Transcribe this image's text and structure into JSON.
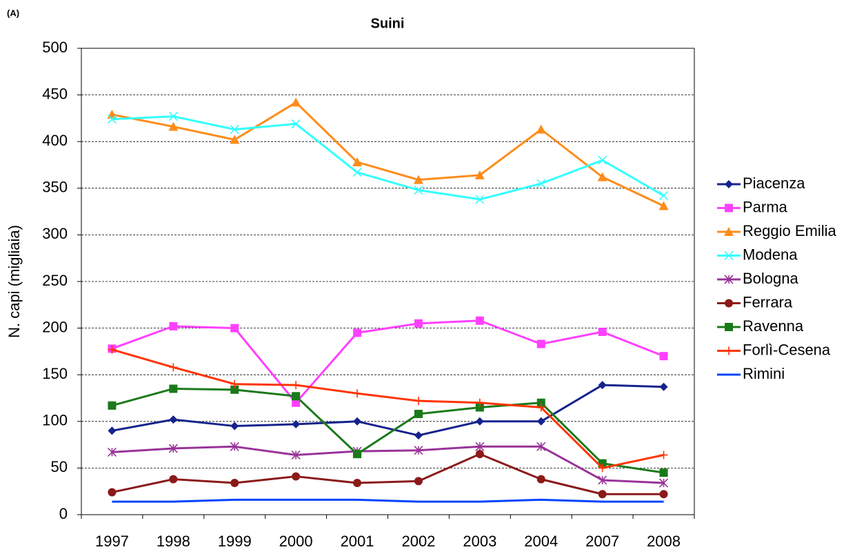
{
  "panel_label": "(A)",
  "chart_data": {
    "type": "line",
    "title": "Suini",
    "y_label": "N. capi (migliaia)",
    "categories": [
      "1997",
      "1998",
      "1999",
      "2000",
      "2001",
      "2002",
      "2003",
      "2004",
      "2007",
      "2008"
    ],
    "ylim": [
      0,
      500
    ],
    "yticks": [
      0,
      50,
      100,
      150,
      200,
      250,
      300,
      350,
      400,
      450,
      500
    ],
    "grid": true,
    "legend": "right",
    "series": [
      {
        "name": "Piacenza",
        "color": "#14238c",
        "marker": "diamond",
        "values": [
          90,
          102,
          95,
          97,
          100,
          85,
          100,
          100,
          139,
          137
        ]
      },
      {
        "name": "Parma",
        "color": "#ff40ff",
        "marker": "square",
        "values": [
          178,
          202,
          200,
          120,
          195,
          205,
          208,
          183,
          196,
          170
        ]
      },
      {
        "name": "Reggio Emilia",
        "color": "#ff8c1a",
        "marker": "triangle",
        "values": [
          429,
          416,
          402,
          442,
          378,
          359,
          364,
          413,
          362,
          331
        ]
      },
      {
        "name": "Modena",
        "color": "#33ffff",
        "marker": "x",
        "values": [
          424,
          427,
          413,
          419,
          367,
          348,
          338,
          355,
          380,
          342
        ]
      },
      {
        "name": "Bologna",
        "color": "#993399",
        "marker": "star",
        "values": [
          67,
          71,
          73,
          64,
          68,
          69,
          73,
          73,
          37,
          34
        ]
      },
      {
        "name": "Ferrara",
        "color": "#8b1a1a",
        "marker": "circle",
        "values": [
          24,
          38,
          34,
          41,
          34,
          36,
          65,
          38,
          22,
          22
        ]
      },
      {
        "name": "Ravenna",
        "color": "#1a7a1a",
        "marker": "square",
        "values": [
          117,
          135,
          134,
          127,
          65,
          108,
          115,
          120,
          55,
          45
        ]
      },
      {
        "name": "Forlì-Cesena",
        "color": "#ff3300",
        "marker": "plus",
        "values": [
          177,
          158,
          140,
          139,
          130,
          122,
          120,
          115,
          50,
          64
        ]
      },
      {
        "name": "Rimini",
        "color": "#0044ff",
        "marker": "none",
        "values": [
          14,
          14,
          16,
          16,
          16,
          14,
          14,
          16,
          14,
          14
        ]
      }
    ]
  }
}
